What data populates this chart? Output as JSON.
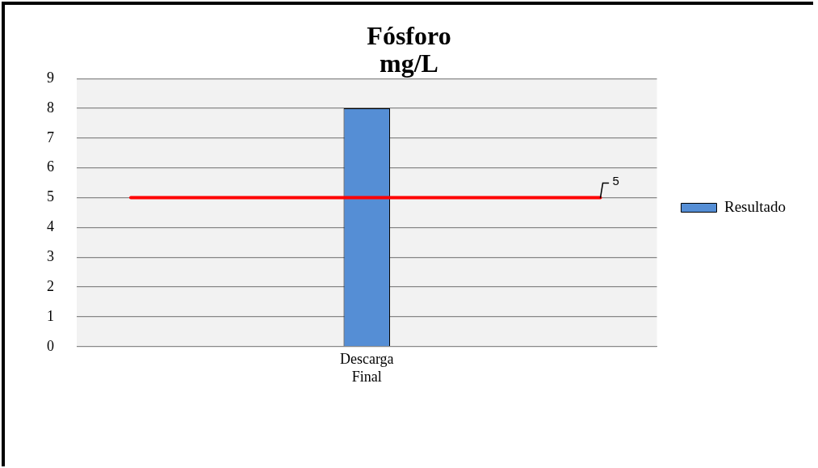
{
  "chart_data": {
    "type": "bar",
    "title": "Fósforo\nmg/L",
    "categories": [
      "Descarga Final"
    ],
    "series": [
      {
        "name": "Resultado",
        "color": "#558ed5",
        "values": [
          8
        ]
      }
    ],
    "ylim": [
      0,
      9
    ],
    "yticks": [
      0,
      1,
      2,
      3,
      4,
      5,
      6,
      7,
      8,
      9
    ],
    "grid": "y",
    "legend": "right",
    "ref_lines": [
      {
        "axis": "y",
        "value": 5,
        "label": "5",
        "color": "#ff0000"
      }
    ]
  }
}
